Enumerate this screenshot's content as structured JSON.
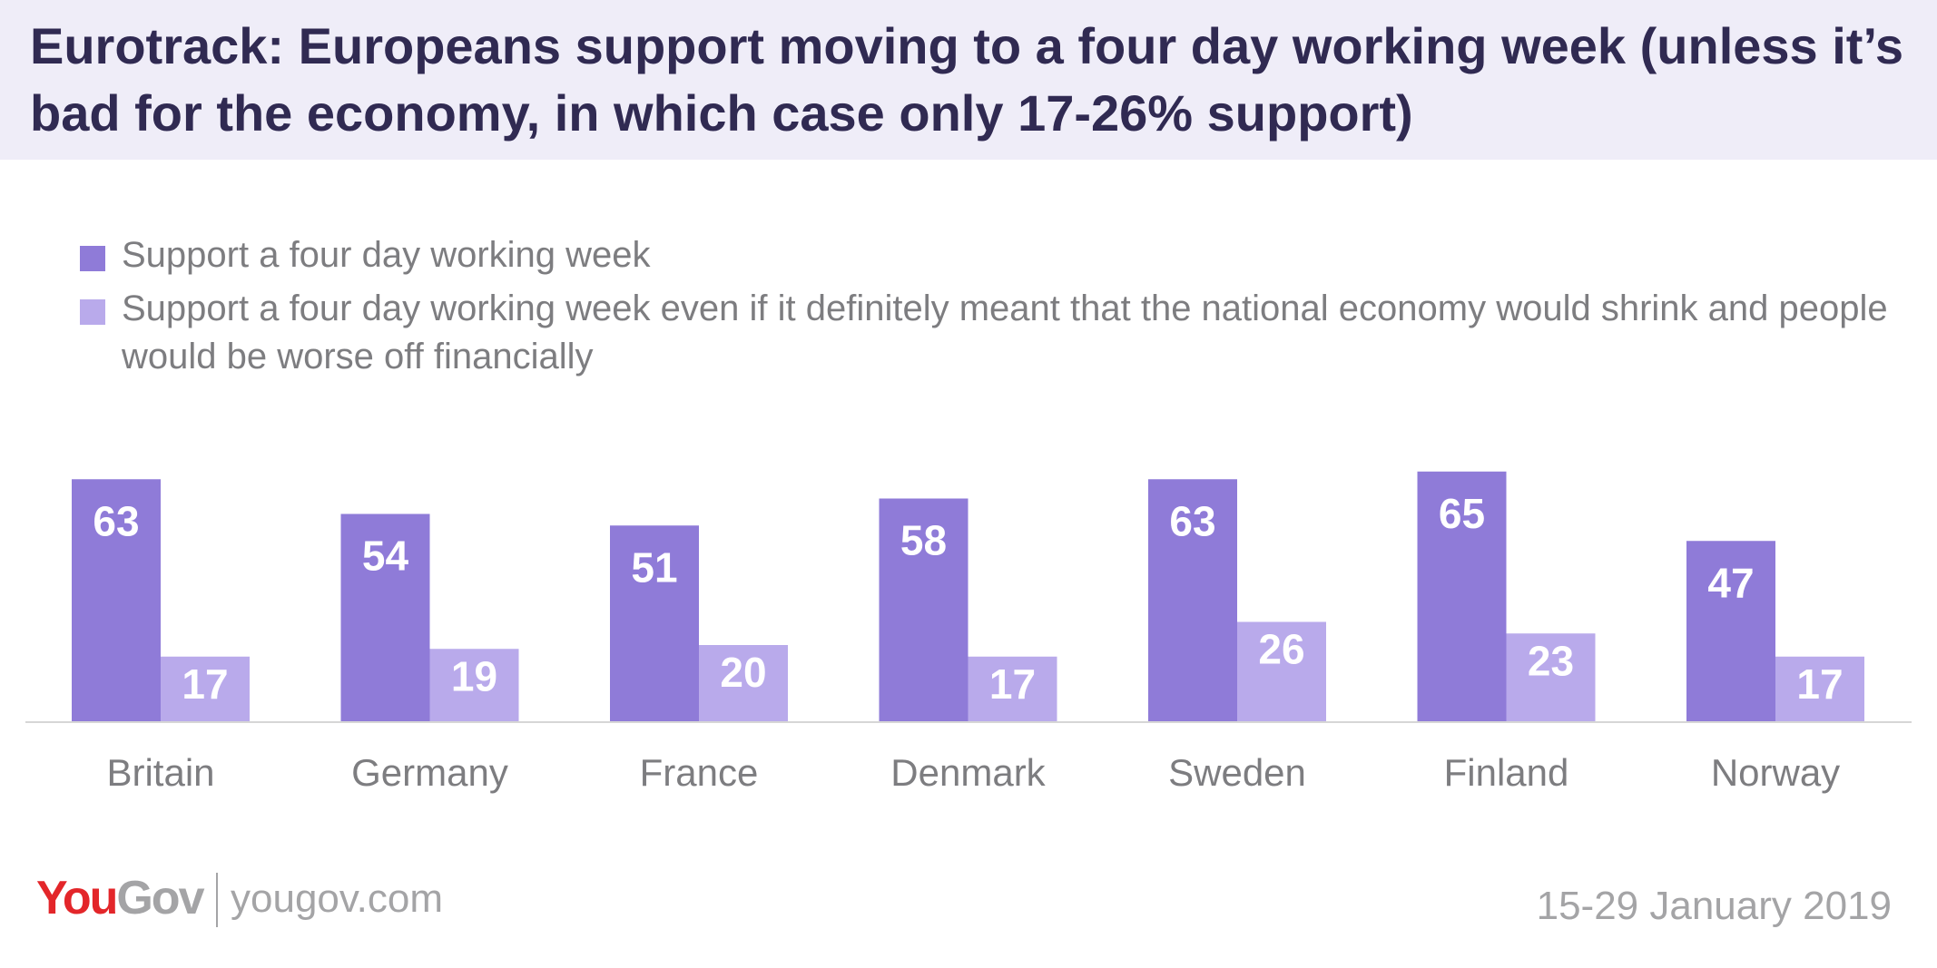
{
  "title": "Eurotrack: Europeans support moving to a four day working week (unless it’s bad for the economy, in which case only 17-26% support)",
  "colors": {
    "title_band": "#efedf8",
    "title_text": "#302a52",
    "series1": "#8f7bd8",
    "series2": "#b9aaeb",
    "axis": "#d6d6d6",
    "label_text": "#7d7d80"
  },
  "chart_data": {
    "type": "bar",
    "categories": [
      "Britain",
      "Germany",
      "France",
      "Denmark",
      "Sweden",
      "Finland",
      "Norway"
    ],
    "series": [
      {
        "name": "Support a four day working week",
        "color": "#8f7bd8",
        "values": [
          63,
          54,
          51,
          58,
          63,
          65,
          47
        ]
      },
      {
        "name": "Support a four day working week even if it definitely meant that the national economy would shrink and people would be worse off financially",
        "color": "#b9aaeb",
        "values": [
          17,
          19,
          20,
          17,
          26,
          23,
          17
        ]
      }
    ],
    "ylim": [
      0,
      70
    ],
    "grid": false,
    "legend": "top-left",
    "data_labels": true
  },
  "footer": {
    "logo_you": "You",
    "logo_gov": "Gov",
    "url": "yougov.com",
    "date": "15-29 January 2019"
  }
}
